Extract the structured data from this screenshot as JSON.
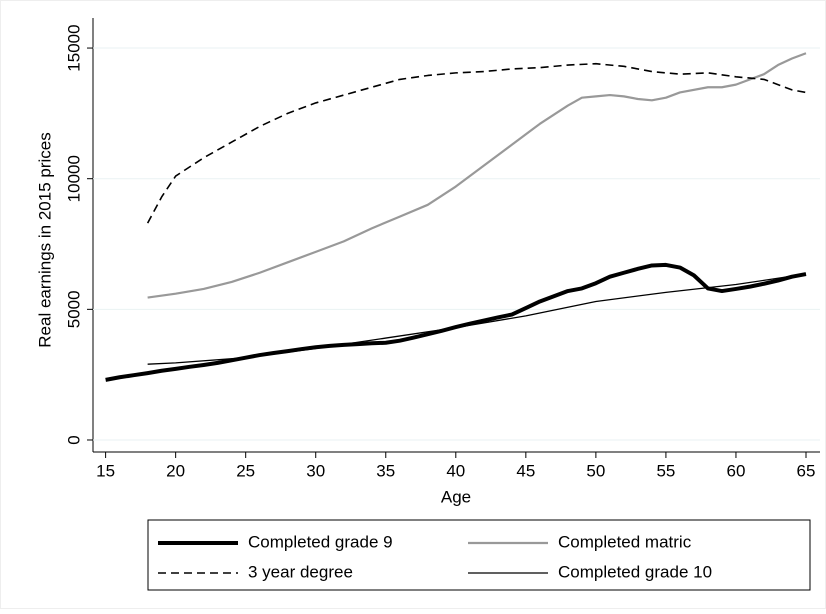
{
  "chart_data": {
    "type": "line",
    "x_label": "Age",
    "y_label": "Real earnings in 2015 prices",
    "xlim": [
      14.1,
      66
    ],
    "ylim": [
      -460,
      16150
    ],
    "xticks": [
      15,
      20,
      25,
      30,
      35,
      40,
      45,
      50,
      55,
      60,
      65
    ],
    "yticks": [
      0,
      5000,
      10000,
      15000
    ],
    "series": [
      {
        "name": "Completed grade 9",
        "color": "#000000",
        "width": 4,
        "dash": "none",
        "x": [
          15,
          16,
          17,
          18,
          19,
          20,
          21,
          22,
          23,
          24,
          25,
          26,
          27,
          28,
          29,
          30,
          31,
          32,
          33,
          34,
          35,
          36,
          37,
          38,
          39,
          40,
          41,
          42,
          43,
          44,
          45,
          46,
          47,
          48,
          49,
          50,
          51,
          52,
          53,
          54,
          55,
          56,
          57,
          58,
          59,
          60,
          61,
          62,
          63,
          64,
          65
        ],
        "values": [
          2300,
          2400,
          2480,
          2560,
          2650,
          2720,
          2800,
          2870,
          2950,
          3050,
          3150,
          3250,
          3330,
          3400,
          3480,
          3550,
          3600,
          3640,
          3670,
          3700,
          3720,
          3800,
          3920,
          4050,
          4180,
          4320,
          4450,
          4570,
          4690,
          4800,
          5050,
          5300,
          5500,
          5700,
          5800,
          6000,
          6250,
          6400,
          6550,
          6680,
          6700,
          6600,
          6300,
          5800,
          5700,
          5780,
          5870,
          5980,
          6100,
          6250,
          6350
        ]
      },
      {
        "name": "Completed matric",
        "color": "#999999",
        "width": 2.2,
        "dash": "none",
        "x": [
          18,
          20,
          22,
          24,
          26,
          28,
          30,
          32,
          34,
          36,
          38,
          40,
          42,
          44,
          46,
          48,
          49,
          50,
          51,
          52,
          53,
          54,
          55,
          56,
          58,
          59,
          60,
          62,
          63,
          64,
          65
        ],
        "values": [
          5450,
          5600,
          5780,
          6050,
          6400,
          6800,
          7200,
          7600,
          8100,
          8550,
          9000,
          9700,
          10500,
          11300,
          12100,
          12800,
          13100,
          13150,
          13200,
          13150,
          13050,
          13000,
          13100,
          13300,
          13500,
          13500,
          13600,
          14000,
          14350,
          14600,
          14800
        ]
      },
      {
        "name": "3 year degree",
        "color": "#000000",
        "width": 1.6,
        "dash": "8 5",
        "x": [
          18,
          19,
          20,
          22,
          24,
          26,
          28,
          30,
          32,
          34,
          36,
          38,
          40,
          42,
          44,
          46,
          48,
          50,
          52,
          54,
          56,
          58,
          60,
          62,
          64,
          65
        ],
        "values": [
          8300,
          9300,
          10100,
          10800,
          11400,
          12000,
          12500,
          12900,
          13200,
          13500,
          13800,
          13950,
          14050,
          14100,
          14200,
          14250,
          14350,
          14400,
          14300,
          14100,
          14000,
          14050,
          13900,
          13800,
          13400,
          13300
        ]
      },
      {
        "name": "Completed grade 10",
        "color": "#000000",
        "width": 1.3,
        "dash": "none",
        "x": [
          18,
          20,
          25,
          30,
          35,
          40,
          45,
          50,
          55,
          60,
          65
        ],
        "values": [
          2900,
          2950,
          3150,
          3500,
          3900,
          4300,
          4750,
          5300,
          5650,
          5950,
          6350
        ]
      }
    ]
  }
}
